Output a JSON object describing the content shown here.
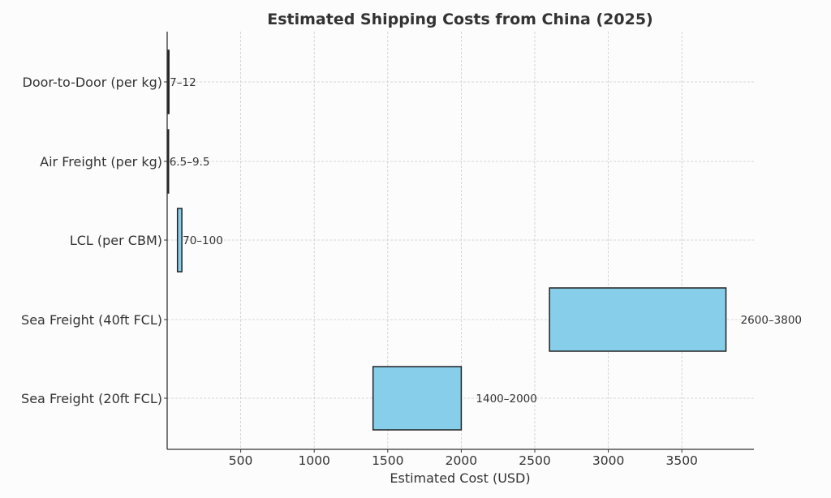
{
  "chart_data": {
    "type": "bar",
    "orientation": "horizontal-range",
    "title": "Estimated Shipping Costs from China (2025)",
    "xlabel": "Estimated Cost (USD)",
    "ylabel": "",
    "xlim": [
      0,
      3990
    ],
    "xticks": [
      500,
      1000,
      1500,
      2000,
      2500,
      3000,
      3500
    ],
    "grid": true,
    "legend": null,
    "bar_color": "#87ceeb",
    "edge_color": "#222222",
    "categories": [
      "Door-to-Door (per kg)",
      "Air Freight (per kg)",
      "LCL (per CBM)",
      "Sea Freight (40ft FCL)",
      "Sea Freight (20ft FCL)"
    ],
    "series": [
      {
        "name": "min",
        "values": [
          7,
          6.5,
          70,
          2600,
          1400
        ]
      },
      {
        "name": "max",
        "values": [
          12,
          9.5,
          100,
          3800,
          2000
        ]
      }
    ],
    "labels": [
      "7–12",
      "6.5–9.5",
      "70–100",
      "2600–3800",
      "1400–2000"
    ]
  }
}
